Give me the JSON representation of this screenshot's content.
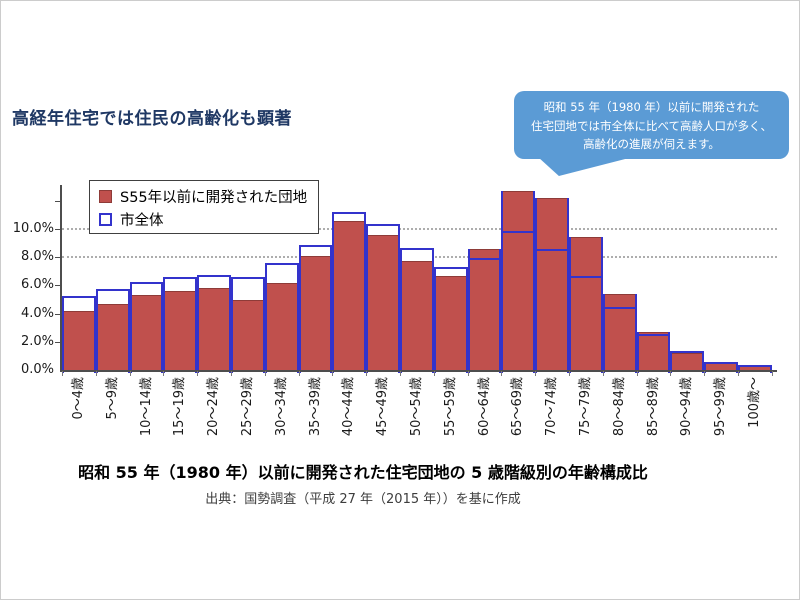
{
  "page": {
    "title": "高経年住宅では住民の高齢化も顕著",
    "caption": "昭和 55 年（1980 年）以前に開発された住宅団地の 5 歳階級別の年齢構成比",
    "source": "出典：国勢調査（平成 27 年（2015 年））を基に作成"
  },
  "callout": {
    "lines": [
      "昭和 55 年（1980 年）以前に開発された",
      "住宅団地では市全体に比べて高齢人口が多く、",
      "高齢化の進展が伺えます。"
    ],
    "fill_color": "#5B9BD5",
    "text_color": "#FFFFFF"
  },
  "legend": {
    "items": [
      {
        "label": "S55年以前に開発された団地",
        "swatch": "filled-red"
      },
      {
        "label": "市全体",
        "swatch": "outlined-blue"
      }
    ]
  },
  "chart_data": {
    "type": "bar",
    "title": "",
    "categories": [
      "0～4歳",
      "5～9歳",
      "10～14歳",
      "15～19歳",
      "20～24歳",
      "25～29歳",
      "30～34歳",
      "35～39歳",
      "40～44歳",
      "45～49歳",
      "50～54歳",
      "55～59歳",
      "60～64歳",
      "65～69歳",
      "70～74歳",
      "75～79歳",
      "80～84歳",
      "85～89歳",
      "90～94歳",
      "95～99歳",
      "100歳～"
    ],
    "series": [
      {
        "name": "S55年以前に開発された団地",
        "style": "filled",
        "color": "#C0504D",
        "border_color": "#8E3B38",
        "values": [
          4.2,
          4.7,
          5.3,
          5.6,
          5.8,
          5.0,
          6.2,
          8.1,
          10.6,
          9.6,
          7.7,
          6.7,
          8.6,
          12.7,
          12.2,
          9.4,
          5.4,
          2.7,
          1.2,
          0.6,
          0.3
        ]
      },
      {
        "name": "市全体",
        "style": "outline",
        "color": "#3333CC",
        "border_color": "#3333CC",
        "values": [
          5.2,
          5.7,
          6.2,
          6.5,
          6.7,
          6.5,
          7.5,
          8.8,
          11.1,
          10.3,
          8.6,
          7.2,
          7.9,
          9.8,
          8.5,
          6.6,
          4.4,
          2.5,
          1.3,
          0.5,
          0.3
        ]
      }
    ],
    "y_axis": {
      "tick_labels": [
        "0.0%",
        "2.0%",
        "4.0%",
        "6.0%",
        "8.0%",
        "10.0%"
      ],
      "tick_values": [
        0,
        2,
        4,
        6,
        8,
        10
      ],
      "unit": "%",
      "max_percent": 13,
      "gridlines_percent": [
        8,
        10
      ],
      "gridline_style": "dotted"
    },
    "x_axis": {
      "label_rotation_deg": -90
    },
    "legend_position": "top-left-inside",
    "bars": "overlaid"
  }
}
